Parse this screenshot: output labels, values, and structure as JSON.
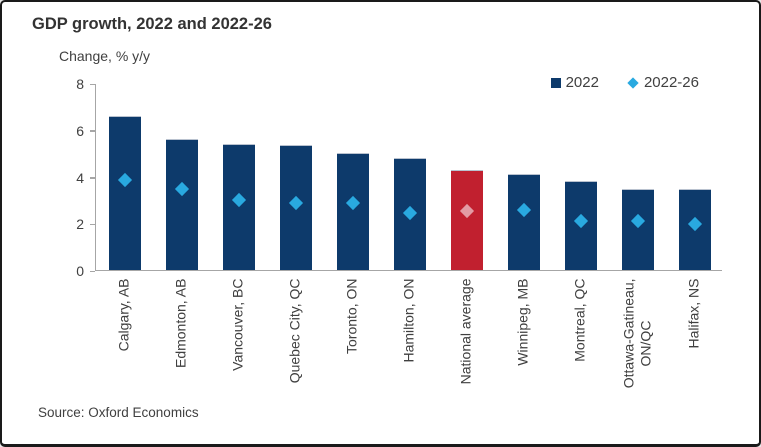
{
  "header": {
    "title": "GDP growth, 2022 and 2022-26",
    "subtitle": "Change, % y/y"
  },
  "source": "Source: Oxford Economics",
  "colors": {
    "bar_navy": "#0d3a6b",
    "bar_red": "#c1202f",
    "marker_cyan": "#29a9e0",
    "marker_pink": "#e39ba4",
    "axis_gray": "#a6a6a6",
    "text": "#404040"
  },
  "chart_data": {
    "type": "bar",
    "title": "GDP growth, 2022 and 2022-26",
    "ylabel": "Change, % y/y",
    "xlabel": "",
    "ylim": [
      0,
      8
    ],
    "yticks": [
      0,
      2,
      4,
      6,
      8
    ],
    "grid": false,
    "legend_position": "top-right",
    "categories": [
      "Calgary, AB",
      "Edmonton, AB",
      "Vancouver, BC",
      "Quebec City, QC",
      "Toronto, ON",
      "Hamilton, ON",
      "National average",
      "Winnipeg, MB",
      "Montreal, QC",
      "Ottawa-Gatineau,\nON/QC",
      "Halifax, NS"
    ],
    "series": [
      {
        "name": "2022",
        "type": "bar",
        "color": "#0d3a6b",
        "values": [
          6.6,
          5.6,
          5.4,
          5.35,
          5.0,
          4.8,
          4.3,
          4.1,
          3.8,
          3.45,
          3.45
        ]
      },
      {
        "name": "2022-26",
        "type": "scatter",
        "marker": "diamond",
        "color": "#29a9e0",
        "values": [
          3.9,
          3.5,
          3.05,
          2.9,
          2.9,
          2.5,
          2.55,
          2.6,
          2.15,
          2.15,
          2.0
        ]
      }
    ],
    "highlight": {
      "index": 6,
      "category": "National average",
      "bar_color": "#c1202f",
      "marker_color": "#e39ba4"
    }
  }
}
